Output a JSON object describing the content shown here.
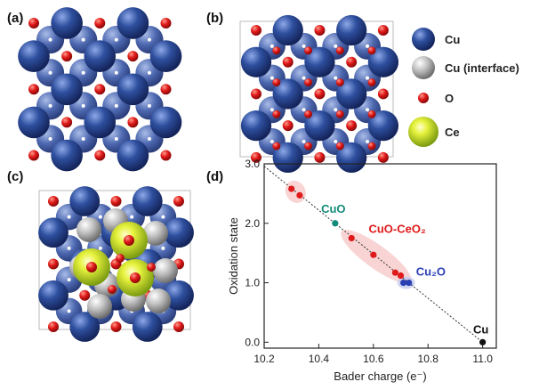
{
  "panels": {
    "a": "(a)",
    "b": "(b)",
    "c": "(c)",
    "d": "(d)"
  },
  "legend": [
    {
      "label": "Cu",
      "color": "#2e4f9e",
      "icon": "cu-atom-icon"
    },
    {
      "label": "Cu (interface)",
      "color": "#b8b8b8",
      "icon": "cu-interface-atom-icon"
    },
    {
      "label": "O",
      "color": "#e01a1a",
      "icon": "o-atom-icon"
    },
    {
      "label": "Ce",
      "color": "#b8d32a",
      "icon": "ce-atom-icon"
    }
  ],
  "chart_data": {
    "type": "scatter",
    "xlabel": "Bader charge (e⁻)",
    "ylabel": "Oxidation state",
    "xlim": [
      10.2,
      11.05
    ],
    "ylim": [
      -0.1,
      3.0
    ],
    "xticks": [
      "10.2",
      "10.4",
      "10.6",
      "10.8",
      "11.0"
    ],
    "yticks": [
      "0.0",
      "1.0",
      "2.0",
      "3.0"
    ],
    "grid": false,
    "trend_line": {
      "x": [
        10.2,
        11.0
      ],
      "y": [
        2.96,
        0.0
      ],
      "style": "dotted"
    },
    "series": [
      {
        "name": "CuO",
        "color": "#138a7a",
        "points": [
          [
            10.46,
            2.0
          ]
        ]
      },
      {
        "name": "CuO-CeO₂",
        "color": "#e01a1a",
        "points": [
          [
            10.3,
            2.58
          ],
          [
            10.33,
            2.47
          ],
          [
            10.52,
            1.75
          ],
          [
            10.6,
            1.47
          ],
          [
            10.68,
            1.17
          ],
          [
            10.7,
            1.12
          ]
        ]
      },
      {
        "name": "Cu₂O",
        "color": "#2b3fb5",
        "points": [
          [
            10.71,
            1.0
          ],
          [
            10.73,
            1.0
          ]
        ]
      },
      {
        "name": "Cu",
        "color": "#111111",
        "points": [
          [
            11.0,
            0.0
          ]
        ]
      }
    ]
  }
}
